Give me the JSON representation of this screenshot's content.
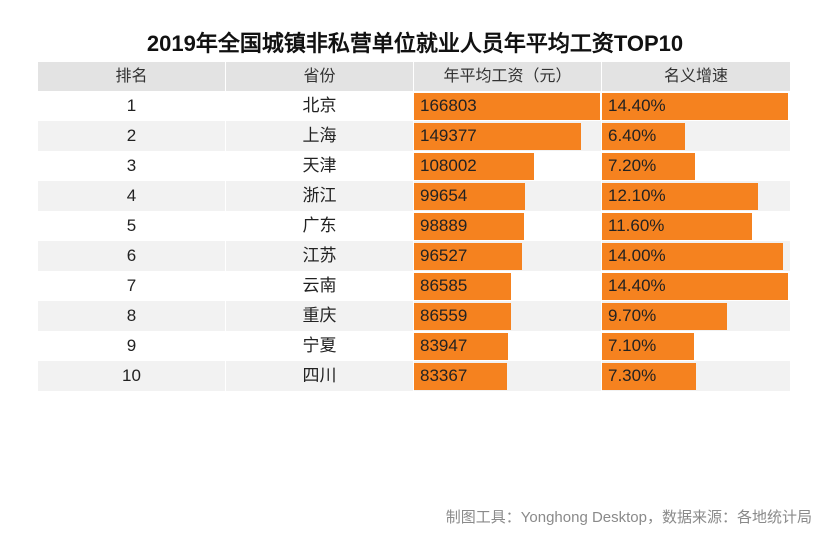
{
  "footer": "制图工具：Yonghong Desktop，数据来源：各地统计局",
  "colors": {
    "bar": "#F5821F",
    "header_bg": "#E3E3E3",
    "row_alt_bg": "#F2F2F2",
    "footer_text": "#8A8A8A"
  },
  "chart_data": {
    "type": "table",
    "title": "2019年全国城镇非私营单位就业人员年平均工资TOP10",
    "columns": [
      "排名",
      "省份",
      "年平均工资（元）",
      "名义增速"
    ],
    "rows": [
      {
        "rank": 1,
        "province": "北京",
        "salary": 166803,
        "growth": "14.40%"
      },
      {
        "rank": 2,
        "province": "上海",
        "salary": 149377,
        "growth": "6.40%"
      },
      {
        "rank": 3,
        "province": "天津",
        "salary": 108002,
        "growth": "7.20%"
      },
      {
        "rank": 4,
        "province": "浙江",
        "salary": 99654,
        "growth": "12.10%"
      },
      {
        "rank": 5,
        "province": "广东",
        "salary": 98889,
        "growth": "11.60%"
      },
      {
        "rank": 6,
        "province": "江苏",
        "salary": 96527,
        "growth": "14.00%"
      },
      {
        "rank": 7,
        "province": "云南",
        "salary": 86585,
        "growth": "14.40%"
      },
      {
        "rank": 8,
        "province": "重庆",
        "salary": 86559,
        "growth": "9.70%"
      },
      {
        "rank": 9,
        "province": "宁夏",
        "salary": 83947,
        "growth": "7.10%"
      },
      {
        "rank": 10,
        "province": "四川",
        "salary": 83367,
        "growth": "7.30%"
      }
    ]
  }
}
